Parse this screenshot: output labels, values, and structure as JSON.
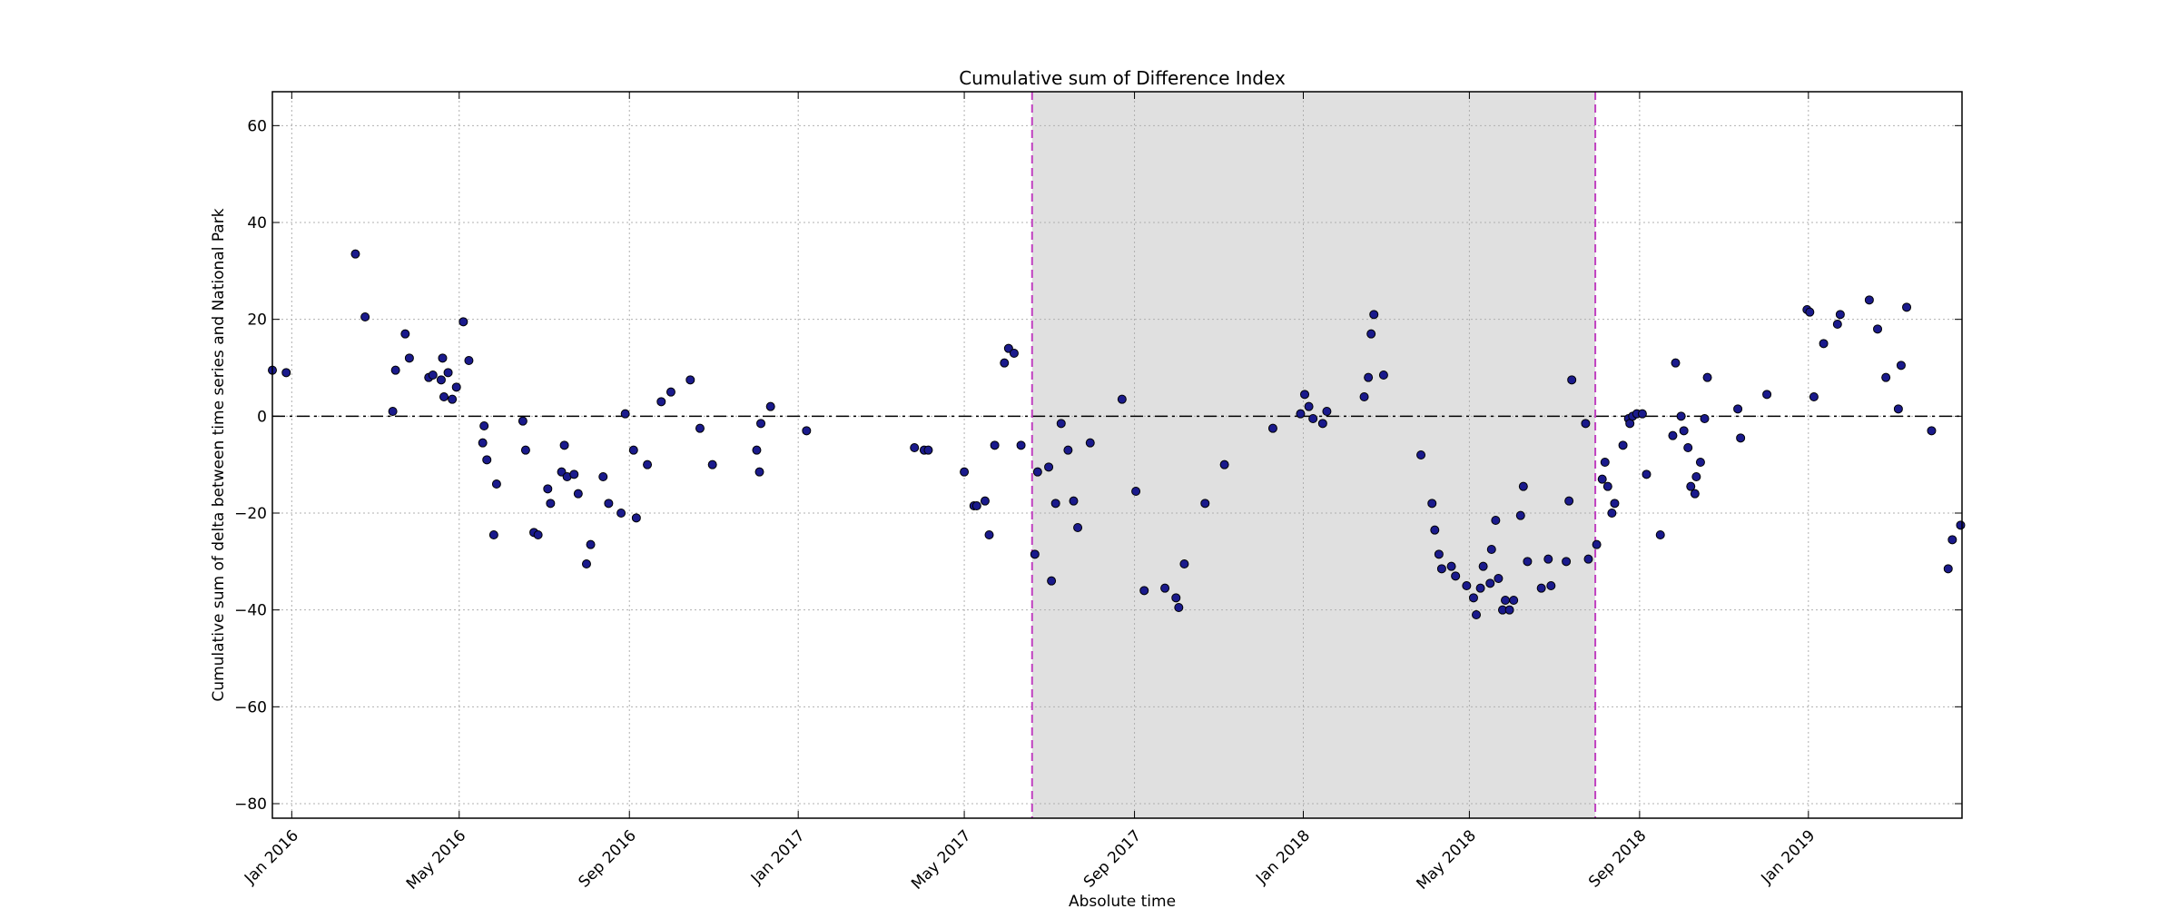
{
  "chart_data": {
    "type": "scatter",
    "title": "Cumulative sum of Difference Index",
    "xlabel": "Absolute time",
    "ylabel": "Cumulative sum of delta between time series and National Park",
    "xlim": [
      "2015-12-18",
      "2019-04-22"
    ],
    "ylim": [
      -83,
      67
    ],
    "x_ticks": [
      {
        "date": "2016-01-01",
        "label": "Jan 2016"
      },
      {
        "date": "2016-05-01",
        "label": "May 2016"
      },
      {
        "date": "2016-09-01",
        "label": "Sep 2016"
      },
      {
        "date": "2017-01-01",
        "label": "Jan 2017"
      },
      {
        "date": "2017-05-01",
        "label": "May 2017"
      },
      {
        "date": "2017-09-01",
        "label": "Sep 2017"
      },
      {
        "date": "2018-01-01",
        "label": "Jan 2018"
      },
      {
        "date": "2018-05-01",
        "label": "May 2018"
      },
      {
        "date": "2018-09-01",
        "label": "Sep 2018"
      },
      {
        "date": "2019-01-01",
        "label": "Jan 2019"
      }
    ],
    "y_ticks": [
      {
        "value": 60,
        "label": "60"
      },
      {
        "value": 40,
        "label": "40"
      },
      {
        "value": 20,
        "label": "20"
      },
      {
        "value": 0,
        "label": "0"
      },
      {
        "value": -20,
        "label": "−20"
      },
      {
        "value": -40,
        "label": "−40"
      },
      {
        "value": -60,
        "label": "−60"
      },
      {
        "value": -80,
        "label": "−80"
      }
    ],
    "grid": true,
    "zero_line": 0,
    "shaded_region": {
      "start": "2017-06-19",
      "end": "2018-07-31"
    },
    "colors": {
      "point_fill": "#1a1a8c",
      "point_edge": "#000000",
      "shade": "#e0e0e0",
      "vline": "#c040c0",
      "grid": "#b0b0b0"
    },
    "points": [
      {
        "x": "2015-12-18",
        "y": 9.5
      },
      {
        "x": "2015-12-28",
        "y": 9
      },
      {
        "x": "2016-02-16",
        "y": 33.5
      },
      {
        "x": "2016-02-23",
        "y": 20.5
      },
      {
        "x": "2016-03-14",
        "y": 1
      },
      {
        "x": "2016-03-16",
        "y": 9.5
      },
      {
        "x": "2016-03-23",
        "y": 17
      },
      {
        "x": "2016-03-26",
        "y": 12
      },
      {
        "x": "2016-04-09",
        "y": 8
      },
      {
        "x": "2016-04-12",
        "y": 8.5
      },
      {
        "x": "2016-04-18",
        "y": 7.5
      },
      {
        "x": "2016-04-19",
        "y": 12
      },
      {
        "x": "2016-04-20",
        "y": 4
      },
      {
        "x": "2016-04-23",
        "y": 9
      },
      {
        "x": "2016-04-26",
        "y": 3.5
      },
      {
        "x": "2016-04-29",
        "y": 6
      },
      {
        "x": "2016-05-04",
        "y": 19.5
      },
      {
        "x": "2016-05-08",
        "y": 11.5
      },
      {
        "x": "2016-05-18",
        "y": -5.5
      },
      {
        "x": "2016-05-19",
        "y": -2
      },
      {
        "x": "2016-05-21",
        "y": -9
      },
      {
        "x": "2016-05-26",
        "y": -24.5
      },
      {
        "x": "2016-05-28",
        "y": -14
      },
      {
        "x": "2016-06-16",
        "y": -1
      },
      {
        "x": "2016-06-18",
        "y": -7
      },
      {
        "x": "2016-06-24",
        "y": -24
      },
      {
        "x": "2016-06-27",
        "y": -24.5
      },
      {
        "x": "2016-07-04",
        "y": -15
      },
      {
        "x": "2016-07-06",
        "y": -18
      },
      {
        "x": "2016-07-14",
        "y": -11.5
      },
      {
        "x": "2016-07-16",
        "y": -6
      },
      {
        "x": "2016-07-18",
        "y": -12.5
      },
      {
        "x": "2016-07-23",
        "y": -12
      },
      {
        "x": "2016-07-26",
        "y": -16
      },
      {
        "x": "2016-08-01",
        "y": -30.5
      },
      {
        "x": "2016-08-04",
        "y": -26.5
      },
      {
        "x": "2016-08-13",
        "y": -12.5
      },
      {
        "x": "2016-08-17",
        "y": -18
      },
      {
        "x": "2016-08-26",
        "y": -20
      },
      {
        "x": "2016-08-29",
        "y": 0.5
      },
      {
        "x": "2016-09-04",
        "y": -7
      },
      {
        "x": "2016-09-06",
        "y": -21
      },
      {
        "x": "2016-09-14",
        "y": -10
      },
      {
        "x": "2016-09-24",
        "y": 3
      },
      {
        "x": "2016-10-01",
        "y": 5
      },
      {
        "x": "2016-10-15",
        "y": 7.5
      },
      {
        "x": "2016-10-22",
        "y": -2.5
      },
      {
        "x": "2016-10-31",
        "y": -10
      },
      {
        "x": "2016-12-02",
        "y": -7
      },
      {
        "x": "2016-12-04",
        "y": -11.5
      },
      {
        "x": "2016-12-05",
        "y": -1.5
      },
      {
        "x": "2016-12-12",
        "y": 2
      },
      {
        "x": "2017-01-07",
        "y": -3
      },
      {
        "x": "2017-03-26",
        "y": -6.5
      },
      {
        "x": "2017-04-02",
        "y": -7
      },
      {
        "x": "2017-04-05",
        "y": -7
      },
      {
        "x": "2017-05-01",
        "y": -11.5
      },
      {
        "x": "2017-05-08",
        "y": -18.5
      },
      {
        "x": "2017-05-10",
        "y": -18.5
      },
      {
        "x": "2017-05-16",
        "y": -17.5
      },
      {
        "x": "2017-05-19",
        "y": -24.5
      },
      {
        "x": "2017-05-23",
        "y": -6
      },
      {
        "x": "2017-05-30",
        "y": 11
      },
      {
        "x": "2017-06-02",
        "y": 14
      },
      {
        "x": "2017-06-06",
        "y": 13
      },
      {
        "x": "2017-06-11",
        "y": -6
      },
      {
        "x": "2017-06-21",
        "y": -28.5
      },
      {
        "x": "2017-06-23",
        "y": -11.5
      },
      {
        "x": "2017-07-01",
        "y": -10.5
      },
      {
        "x": "2017-07-03",
        "y": -34
      },
      {
        "x": "2017-07-06",
        "y": -18
      },
      {
        "x": "2017-07-10",
        "y": -1.5
      },
      {
        "x": "2017-07-15",
        "y": -7
      },
      {
        "x": "2017-07-19",
        "y": -17.5
      },
      {
        "x": "2017-07-22",
        "y": -23
      },
      {
        "x": "2017-07-31",
        "y": -5.5
      },
      {
        "x": "2017-08-23",
        "y": 3.5
      },
      {
        "x": "2017-09-02",
        "y": -15.5
      },
      {
        "x": "2017-09-08",
        "y": -36
      },
      {
        "x": "2017-09-23",
        "y": -35.5
      },
      {
        "x": "2017-10-01",
        "y": -37.5
      },
      {
        "x": "2017-10-03",
        "y": -39.5
      },
      {
        "x": "2017-10-07",
        "y": -30.5
      },
      {
        "x": "2017-10-22",
        "y": -18
      },
      {
        "x": "2017-11-05",
        "y": -10
      },
      {
        "x": "2017-12-10",
        "y": -2.5
      },
      {
        "x": "2017-12-30",
        "y": 0.5
      },
      {
        "x": "2018-01-02",
        "y": 4.5
      },
      {
        "x": "2018-01-05",
        "y": 2
      },
      {
        "x": "2018-01-08",
        "y": -0.5
      },
      {
        "x": "2018-01-15",
        "y": -1.5
      },
      {
        "x": "2018-01-18",
        "y": 1
      },
      {
        "x": "2018-02-14",
        "y": 4
      },
      {
        "x": "2018-02-17",
        "y": 8
      },
      {
        "x": "2018-02-19",
        "y": 17
      },
      {
        "x": "2018-02-21",
        "y": 21
      },
      {
        "x": "2018-02-28",
        "y": 8.5
      },
      {
        "x": "2018-03-27",
        "y": -8
      },
      {
        "x": "2018-04-04",
        "y": -18
      },
      {
        "x": "2018-04-06",
        "y": -23.5
      },
      {
        "x": "2018-04-09",
        "y": -28.5
      },
      {
        "x": "2018-04-11",
        "y": -31.5
      },
      {
        "x": "2018-04-18",
        "y": -31
      },
      {
        "x": "2018-04-21",
        "y": -33
      },
      {
        "x": "2018-04-29",
        "y": -35
      },
      {
        "x": "2018-05-04",
        "y": -37.5
      },
      {
        "x": "2018-05-06",
        "y": -41
      },
      {
        "x": "2018-05-09",
        "y": -35.5
      },
      {
        "x": "2018-05-11",
        "y": -31
      },
      {
        "x": "2018-05-16",
        "y": -34.5
      },
      {
        "x": "2018-05-17",
        "y": -27.5
      },
      {
        "x": "2018-05-20",
        "y": -21.5
      },
      {
        "x": "2018-05-22",
        "y": -33.5
      },
      {
        "x": "2018-05-25",
        "y": -40
      },
      {
        "x": "2018-05-27",
        "y": -38
      },
      {
        "x": "2018-05-30",
        "y": -40
      },
      {
        "x": "2018-06-02",
        "y": -38
      },
      {
        "x": "2018-06-07",
        "y": -20.5
      },
      {
        "x": "2018-06-09",
        "y": -14.5
      },
      {
        "x": "2018-06-12",
        "y": -30
      },
      {
        "x": "2018-06-22",
        "y": -35.5
      },
      {
        "x": "2018-06-27",
        "y": -29.5
      },
      {
        "x": "2018-06-29",
        "y": -35
      },
      {
        "x": "2018-07-10",
        "y": -30
      },
      {
        "x": "2018-07-12",
        "y": -17.5
      },
      {
        "x": "2018-07-14",
        "y": 7.5
      },
      {
        "x": "2018-07-24",
        "y": -1.5
      },
      {
        "x": "2018-07-26",
        "y": -29.5
      },
      {
        "x": "2018-08-01",
        "y": -26.5
      },
      {
        "x": "2018-08-05",
        "y": -13
      },
      {
        "x": "2018-08-07",
        "y": -9.5
      },
      {
        "x": "2018-08-09",
        "y": -14.5
      },
      {
        "x": "2018-08-12",
        "y": -20
      },
      {
        "x": "2018-08-14",
        "y": -18
      },
      {
        "x": "2018-08-20",
        "y": -6
      },
      {
        "x": "2018-08-24",
        "y": -0.5
      },
      {
        "x": "2018-08-25",
        "y": -1.5
      },
      {
        "x": "2018-08-27",
        "y": 0
      },
      {
        "x": "2018-08-30",
        "y": 0.5
      },
      {
        "x": "2018-09-03",
        "y": 0.5
      },
      {
        "x": "2018-09-06",
        "y": -12
      },
      {
        "x": "2018-09-16",
        "y": -24.5
      },
      {
        "x": "2018-09-25",
        "y": -4
      },
      {
        "x": "2018-09-27",
        "y": 11
      },
      {
        "x": "2018-10-01",
        "y": 0
      },
      {
        "x": "2018-10-03",
        "y": -3
      },
      {
        "x": "2018-10-06",
        "y": -6.5
      },
      {
        "x": "2018-10-08",
        "y": -14.5
      },
      {
        "x": "2018-10-11",
        "y": -16
      },
      {
        "x": "2018-10-12",
        "y": -12.5
      },
      {
        "x": "2018-10-15",
        "y": -9.5
      },
      {
        "x": "2018-10-18",
        "y": -0.5
      },
      {
        "x": "2018-10-20",
        "y": 8
      },
      {
        "x": "2018-11-11",
        "y": 1.5
      },
      {
        "x": "2018-11-13",
        "y": -4.5
      },
      {
        "x": "2018-12-02",
        "y": 4.5
      },
      {
        "x": "2018-12-31",
        "y": 22
      },
      {
        "x": "2019-01-02",
        "y": 21.5
      },
      {
        "x": "2019-01-05",
        "y": 4
      },
      {
        "x": "2019-01-12",
        "y": 15
      },
      {
        "x": "2019-01-22",
        "y": 19
      },
      {
        "x": "2019-01-24",
        "y": 21
      },
      {
        "x": "2019-02-14",
        "y": 24
      },
      {
        "x": "2019-02-20",
        "y": 18
      },
      {
        "x": "2019-02-26",
        "y": 8
      },
      {
        "x": "2019-03-07",
        "y": 1.5
      },
      {
        "x": "2019-03-09",
        "y": 10.5
      },
      {
        "x": "2019-03-13",
        "y": 22.5
      },
      {
        "x": "2019-03-31",
        "y": -3
      },
      {
        "x": "2019-04-12",
        "y": -31.5
      },
      {
        "x": "2019-04-15",
        "y": -25.5
      },
      {
        "x": "2019-04-21",
        "y": -22.5
      }
    ]
  }
}
